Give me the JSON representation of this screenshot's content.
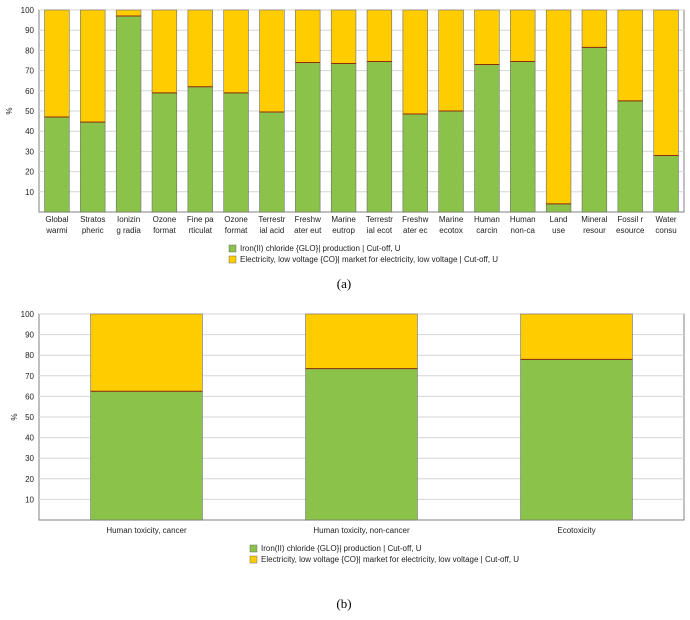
{
  "colors": {
    "iron": "#8bc34a",
    "electricity": "#ffcc00",
    "grid": "#d6d6d6",
    "axis": "#808080"
  },
  "chart_data": [
    {
      "type": "bar",
      "stacked": true,
      "panel_label": "(a)",
      "ylabel": "%",
      "ylim": [
        0,
        100
      ],
      "yticks": [
        "10",
        "20",
        "30",
        "40",
        "50",
        "60",
        "70",
        "80",
        "90",
        "100"
      ],
      "grid": true,
      "legend_position": "bottom",
      "categories": [
        [
          "Global",
          "warmi"
        ],
        [
          "Stratos",
          "pheric"
        ],
        [
          "Ionizin",
          "g radia"
        ],
        [
          "Ozone",
          "format"
        ],
        [
          "Fine pa",
          "rticulat"
        ],
        [
          "Ozone",
          "format"
        ],
        [
          "Terrestr",
          "ial acid"
        ],
        [
          "Freshw",
          "ater eut"
        ],
        [
          "Marine",
          "eutrop"
        ],
        [
          "Terrestr",
          "ial ecot"
        ],
        [
          "Freshw",
          "ater ec"
        ],
        [
          "Marine",
          "ecotox"
        ],
        [
          "Human",
          "carcin"
        ],
        [
          "Human",
          "non-ca"
        ],
        [
          "Land",
          "use"
        ],
        [
          "Mineral",
          "resour"
        ],
        [
          "Fossil r",
          "esource"
        ],
        [
          "Water",
          "consu"
        ]
      ],
      "series": [
        {
          "name": "Iron(II) chloride {GLO}| production | Cut-off, U",
          "values": [
            47,
            44.5,
            97,
            59,
            62,
            59,
            49.5,
            74,
            73.5,
            74.5,
            48.5,
            50,
            73,
            74.5,
            4,
            81.5,
            55,
            28
          ]
        },
        {
          "name": "Electricity, low voltage {CO}| market for electricity, low voltage | Cut-off, U",
          "values": [
            53,
            55.5,
            3,
            41,
            38,
            41,
            50.5,
            26,
            26.5,
            25.5,
            51.5,
            50,
            27,
            25.5,
            96,
            18.5,
            45,
            72
          ]
        }
      ]
    },
    {
      "type": "bar",
      "stacked": true,
      "panel_label": "(b)",
      "ylabel": "%",
      "ylim": [
        0,
        100
      ],
      "yticks": [
        "10",
        "20",
        "30",
        "40",
        "50",
        "60",
        "70",
        "80",
        "90",
        "100"
      ],
      "grid": true,
      "legend_position": "bottom",
      "categories": [
        [
          "Human toxicity, cancer"
        ],
        [
          "Human toxicity, non-cancer"
        ],
        [
          "Ecotoxicity"
        ]
      ],
      "series": [
        {
          "name": "Iron(II) chloride {GLO}| production | Cut-off, U",
          "values": [
            62.5,
            73.5,
            78
          ]
        },
        {
          "name": "Electricity, low voltage {CO}| market for electricity, low voltage | Cut-off, U",
          "values": [
            37.5,
            26.5,
            22
          ]
        }
      ]
    }
  ]
}
